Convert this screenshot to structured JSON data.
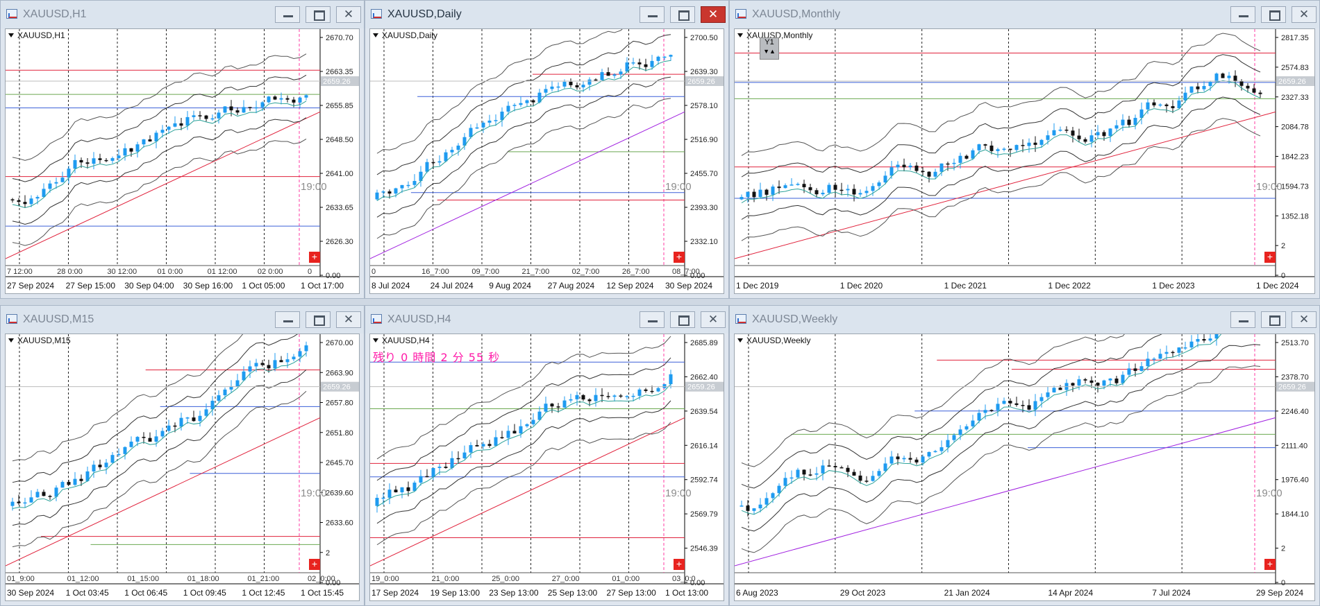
{
  "windows": [
    {
      "id": "h1",
      "title": "XAUUSD,H1",
      "symbol": "XAUUSD,H1",
      "active": false,
      "price_labels": [
        "2670.70",
        "2663.35",
        "2655.85",
        "2648.50",
        "2641.00",
        "2633.65",
        "2626.30",
        "0.00"
      ],
      "current_price": "2659.26",
      "time_labels": [
        "27 Sep 2024",
        "27 Sep 15:00",
        "30 Sep 04:00",
        "30 Sep 16:00",
        "1 Oct 05:00",
        "1 Oct 17:00"
      ],
      "sub_time_labels": [
        "7 12:00",
        "28 0:00",
        "30 12:00",
        "01 0:00",
        "01 12:00",
        "02 0:00",
        "0"
      ],
      "countdown": "19:00",
      "has_plus": true
    },
    {
      "id": "daily",
      "title": "XAUUSD,Daily",
      "symbol": "XAUUSD,Daily",
      "active": true,
      "price_labels": [
        "2700.50",
        "2639.30",
        "2578.10",
        "2516.90",
        "2455.70",
        "2393.30",
        "2332.10",
        "0.00"
      ],
      "current_price": "2659.26",
      "time_labels": [
        "8 Jul 2024",
        "24 Jul 2024",
        "9 Aug 2024",
        "27 Aug 2024",
        "12 Sep 2024",
        "30 Sep 2024"
      ],
      "sub_time_labels": [
        "0",
        "16_7:00",
        "09_7:00",
        "21_7:00",
        "02_7:00",
        "26_7:00",
        "08_7:00"
      ],
      "countdown": "19:00",
      "has_plus": true
    },
    {
      "id": "monthly",
      "title": "XAUUSD,Monthly",
      "symbol": "XAUUSD,Monthly",
      "active": false,
      "price_labels": [
        "2817.35",
        "2574.83",
        "2327.33",
        "2084.78",
        "1842.23",
        "1594.73",
        "1352.18",
        "2",
        "0"
      ],
      "current_price": "2659.26",
      "time_labels": [
        "1 Dec 2019",
        "1 Dec 2020",
        "1 Dec 2021",
        "1 Dec 2022",
        "1 Dec 2023",
        "1 Dec 2024"
      ],
      "sub_time_labels": [],
      "countdown": "19:00",
      "has_plus": true,
      "y1_label": "Y1"
    },
    {
      "id": "m15",
      "title": "XAUUSD,M15",
      "symbol": "XAUUSD,M15",
      "active": false,
      "price_labels": [
        "2670.00",
        "2663.90",
        "2657.80",
        "2651.80",
        "2645.70",
        "2639.60",
        "2633.60",
        "2",
        "0.00"
      ],
      "current_price": "2659.26",
      "time_labels": [
        "30 Sep 2024",
        "1 Oct 03:45",
        "1 Oct 06:45",
        "1 Oct 09:45",
        "1 Oct 12:45",
        "1 Oct 15:45"
      ],
      "sub_time_labels": [
        "01_9:00",
        "01_12:00",
        "01_15:00",
        "01_18:00",
        "01_21:00",
        "02_0:00"
      ],
      "countdown": "19:00",
      "has_plus": true
    },
    {
      "id": "h4",
      "title": "XAUUSD,H4",
      "symbol": "XAUUSD,H4",
      "active": false,
      "price_labels": [
        "2685.89",
        "2662.40",
        "2639.54",
        "2616.14",
        "2592.74",
        "2569.79",
        "2546.39",
        "0.00"
      ],
      "current_price": "2659.26",
      "time_labels": [
        "17 Sep 2024",
        "19 Sep 13:00",
        "23 Sep 13:00",
        "25 Sep 13:00",
        "27 Sep 13:00",
        "1 Oct 13:00"
      ],
      "sub_time_labels": [
        "19_0:00",
        "21_0:00",
        "25_0:00",
        "27_0:00",
        "01_0:00",
        "03_0:0"
      ],
      "countdown": "19:00",
      "has_plus": true,
      "remaining_text": "残り 0 時間 2 分 55 秒"
    },
    {
      "id": "weekly",
      "title": "XAUUSD,Weekly",
      "symbol": "XAUUSD,Weekly",
      "active": false,
      "price_labels": [
        "2513.70",
        "2378.70",
        "2246.40",
        "2111.40",
        "1976.40",
        "1844.10",
        "2",
        "0"
      ],
      "current_price": "2659.26",
      "time_labels": [
        "6 Aug 2023",
        "29 Oct 2023",
        "21 Jan 2024",
        "14 Apr 2024",
        "7 Jul 2024",
        "29 Sep 2024"
      ],
      "sub_time_labels": [],
      "countdown": "19:00",
      "has_plus": true
    }
  ],
  "colors": {
    "bull": "#1e9bf0",
    "bear": "#111111",
    "grid": "#000000",
    "red_line": "#e0203a",
    "blue_line": "#3a5fd8",
    "purple_line": "#a020e0",
    "pink_vline": "#ff3aa0",
    "current_price_bg": "#c7ccd2"
  },
  "icons": {
    "window_icon": "chart-window-icon",
    "minimize": "minimize-icon",
    "maximize": "maximize-icon",
    "close": "close-icon",
    "plus": "plus-icon"
  }
}
